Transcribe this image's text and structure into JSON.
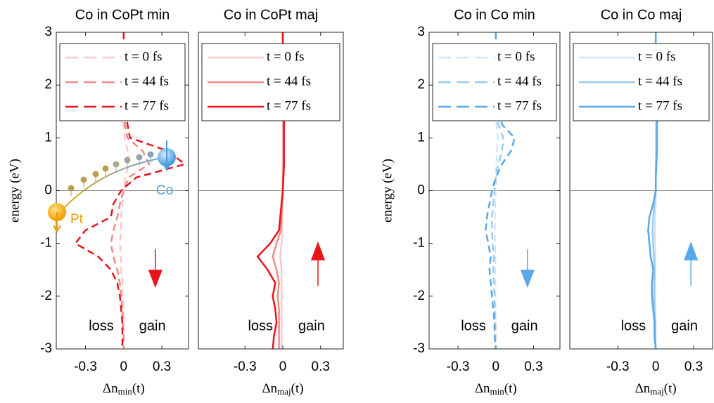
{
  "chart_data": [
    {
      "type": "line",
      "title": "Co in CoPt min",
      "ylabel": "energy (eV)",
      "xlabel": [
        "Δn",
        "min",
        "(t)"
      ],
      "line_style": "dashed",
      "spin": "down",
      "annotations": [
        "loss",
        "gain"
      ],
      "inset_labels": [
        "Pt",
        "Co"
      ],
      "xlim": [
        -0.53,
        0.51
      ],
      "xticks": [
        -0.3,
        0,
        0.3
      ],
      "ylim": [
        -3,
        3
      ],
      "yticks": [
        -3,
        -2,
        -1,
        0,
        1,
        2,
        3
      ],
      "zero_line": true,
      "legend": "upper left",
      "y": [
        3,
        2.75,
        2.5,
        2.25,
        2,
        1.75,
        1.5,
        1.25,
        1,
        0.75,
        0.5,
        0.25,
        0,
        -0.25,
        -0.5,
        -0.75,
        -1,
        -1.25,
        -1.5,
        -1.75,
        -2,
        -2.25,
        -2.5,
        -2.75,
        -3
      ],
      "series": [
        {
          "name": "t = 0 fs",
          "color": "#f8c9c9",
          "values": [
            0,
            0,
            0,
            0,
            0,
            0,
            0,
            0,
            0.01,
            0.03,
            0.04,
            0.01,
            0,
            -0.01,
            -0.02,
            -0.02,
            -0.03,
            -0.02,
            -0.02,
            -0.01,
            -0.01,
            0,
            0,
            0,
            0
          ]
        },
        {
          "name": "t = 44 fs",
          "color": "#f08a8a",
          "values": [
            0,
            0,
            0,
            0,
            0,
            0,
            0.01,
            0.01,
            0.03,
            0.15,
            0.2,
            0.04,
            0,
            -0.03,
            -0.05,
            -0.08,
            -0.1,
            -0.08,
            -0.05,
            -0.03,
            -0.02,
            -0.01,
            -0.01,
            0,
            0
          ]
        },
        {
          "name": "t = 77 fs",
          "color": "#e8141b",
          "values": [
            0,
            0,
            0,
            0.005,
            0.01,
            0.01,
            0.02,
            0.03,
            0.05,
            0.35,
            0.48,
            0.1,
            -0.02,
            -0.08,
            -0.1,
            -0.3,
            -0.38,
            -0.2,
            -0.1,
            -0.05,
            -0.03,
            -0.02,
            -0.01,
            -0.01,
            -0.01
          ]
        }
      ]
    },
    {
      "type": "line",
      "title": "Co in CoPt maj",
      "xlabel": [
        "Δn",
        "maj",
        "(t)"
      ],
      "line_style": "solid",
      "spin": "up",
      "annotations": [
        "loss",
        "gain"
      ],
      "xlim": [
        -0.67,
        0.48
      ],
      "xticks": [
        -0.3,
        0,
        0.3
      ],
      "ylim": [
        -3,
        3
      ],
      "zero_line": true,
      "legend": "upper left",
      "y": [
        3,
        2.75,
        2.5,
        2.25,
        2,
        1.75,
        1.5,
        1.25,
        1,
        0.75,
        0.5,
        0.25,
        0,
        -0.25,
        -0.5,
        -0.75,
        -1,
        -1.25,
        -1.5,
        -1.75,
        -2,
        -2.25,
        -2.5,
        -2.75,
        -3
      ],
      "series": [
        {
          "name": "t = 0 fs",
          "color": "#f8c9c9",
          "values": [
            0,
            0,
            0,
            0,
            0,
            0,
            0,
            0,
            0,
            0,
            0,
            0,
            0,
            0,
            -0.005,
            -0.005,
            -0.01,
            -0.02,
            -0.01,
            -0.01,
            -0.01,
            -0.01,
            -0.01,
            -0.01,
            -0.01
          ]
        },
        {
          "name": "t = 44 fs",
          "color": "#f08a8a",
          "values": [
            0,
            0,
            0,
            0,
            0.005,
            0.005,
            0.005,
            0.005,
            0.005,
            0.005,
            0.005,
            0,
            0,
            -0.005,
            -0.01,
            -0.015,
            -0.05,
            -0.08,
            -0.05,
            -0.03,
            -0.04,
            -0.03,
            -0.03,
            -0.03,
            -0.03
          ]
        },
        {
          "name": "t = 77 fs",
          "color": "#e8141b",
          "values": [
            0,
            0,
            0,
            0.005,
            0.01,
            0.01,
            0.01,
            0.01,
            0.01,
            0.01,
            0.01,
            0.005,
            0,
            -0.01,
            -0.02,
            -0.03,
            -0.1,
            -0.2,
            -0.12,
            -0.06,
            -0.08,
            -0.06,
            -0.05,
            -0.07,
            -0.08
          ]
        }
      ]
    },
    {
      "type": "line",
      "title": "Co in Co min",
      "ylabel": "energy (eV)",
      "xlabel": [
        "Δn",
        "min",
        "(t)"
      ],
      "line_style": "dashed",
      "spin": "down",
      "annotations": [
        "loss",
        "gain"
      ],
      "xlim": [
        -0.53,
        0.51
      ],
      "xticks": [
        -0.3,
        0,
        0.3
      ],
      "ylim": [
        -3,
        3
      ],
      "yticks": [
        -3,
        -2,
        -1,
        0,
        1,
        2,
        3
      ],
      "zero_line": true,
      "legend": "upper left",
      "y": [
        3,
        2.75,
        2.5,
        2.25,
        2,
        1.75,
        1.5,
        1.25,
        1,
        0.75,
        0.5,
        0.25,
        0,
        -0.25,
        -0.5,
        -0.75,
        -1,
        -1.25,
        -1.5,
        -1.75,
        -2,
        -2.25,
        -2.5,
        -2.75,
        -3
      ],
      "series": [
        {
          "name": "t = 0 fs",
          "color": "#cfe5f8",
          "values": [
            0,
            0,
            0,
            0,
            0,
            0,
            0,
            0.005,
            0.015,
            0.01,
            0.005,
            0,
            0,
            -0.005,
            -0.007,
            -0.008,
            -0.006,
            -0.004,
            -0.005,
            -0.004,
            -0.003,
            -0.002,
            -0.001,
            -0.001,
            0
          ]
        },
        {
          "name": "t = 44 fs",
          "color": "#9fcaf0",
          "values": [
            0,
            0,
            0,
            0,
            0.005,
            0.01,
            0.01,
            0.02,
            0.06,
            0.05,
            0.02,
            0,
            -0.01,
            -0.02,
            -0.03,
            -0.03,
            -0.025,
            -0.015,
            -0.02,
            -0.015,
            -0.01,
            -0.008,
            -0.004,
            -0.004,
            0
          ]
        },
        {
          "name": "t = 77 fs",
          "color": "#57a8e8",
          "values": [
            0,
            0,
            0,
            0,
            0.01,
            0.02,
            0.03,
            0.05,
            0.15,
            0.12,
            0.05,
            0,
            -0.03,
            -0.05,
            -0.07,
            -0.08,
            -0.06,
            -0.04,
            -0.05,
            -0.04,
            -0.03,
            -0.02,
            -0.01,
            -0.01,
            0
          ]
        }
      ]
    },
    {
      "type": "line",
      "title": "Co in Co maj",
      "xlabel": [
        "Δn",
        "maj",
        "(t)"
      ],
      "line_style": "solid",
      "spin": "up",
      "annotations": [
        "loss",
        "gain"
      ],
      "xlim": [
        -0.68,
        0.45
      ],
      "xticks": [
        -0.3,
        0,
        0.3
      ],
      "ylim": [
        -3,
        3
      ],
      "zero_line": true,
      "legend": "upper left",
      "y": [
        3,
        2.75,
        2.5,
        2.25,
        2,
        1.75,
        1.5,
        1.25,
        1,
        0.75,
        0.5,
        0.25,
        0,
        -0.25,
        -0.5,
        -0.75,
        -1,
        -1.25,
        -1.5,
        -1.75,
        -2,
        -2.25,
        -2.5,
        -2.75,
        -3
      ],
      "series": [
        {
          "name": "t = 0 fs",
          "color": "#cfe5f8",
          "values": [
            0,
            0,
            0,
            0,
            0,
            0,
            0,
            0,
            0,
            0,
            0,
            0,
            0,
            0,
            -0.005,
            -0.006,
            -0.005,
            -0.004,
            -0.002,
            -0.003,
            -0.003,
            -0.002,
            -0.001,
            -0.001,
            0
          ]
        },
        {
          "name": "t = 44 fs",
          "color": "#9fcaf0",
          "values": [
            0,
            0,
            0,
            0,
            0.002,
            0.005,
            0.005,
            0.005,
            0.005,
            0.005,
            0.002,
            0,
            0,
            -0.01,
            -0.02,
            -0.025,
            -0.02,
            -0.015,
            -0.01,
            -0.012,
            -0.012,
            -0.01,
            -0.005,
            -0.005,
            0
          ]
        },
        {
          "name": "t = 77 fs",
          "color": "#57a8e8",
          "values": [
            0,
            0,
            0,
            0,
            0.005,
            0.01,
            0.01,
            0.01,
            0.01,
            0.01,
            0.005,
            0,
            0,
            -0.02,
            -0.05,
            -0.06,
            -0.05,
            -0.04,
            -0.02,
            -0.03,
            -0.03,
            -0.02,
            -0.01,
            -0.01,
            0
          ]
        }
      ]
    }
  ]
}
